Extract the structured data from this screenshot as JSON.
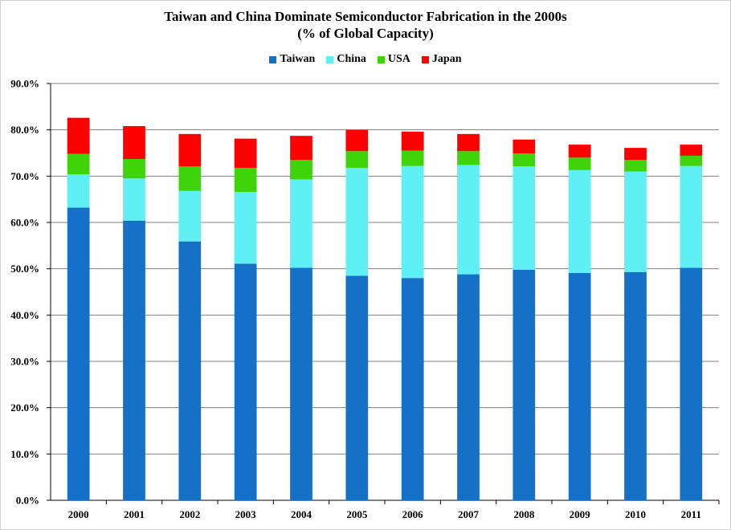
{
  "chart_data": {
    "type": "bar",
    "stacked": true,
    "title": "Taiwan and China Dominate Semiconductor Fabrication in the 2000s",
    "subtitle": "(% of Global Capacity)",
    "legend_position": "top",
    "categories": [
      "2000",
      "2001",
      "2002",
      "2003",
      "2004",
      "2005",
      "2006",
      "2007",
      "2008",
      "2009",
      "2010",
      "2011"
    ],
    "series": [
      {
        "name": "Taiwan",
        "color": "#1570c8",
        "values": [
          63.2,
          60.4,
          55.9,
          51.1,
          50.2,
          48.5,
          48.0,
          48.8,
          49.8,
          49.1,
          49.3,
          50.2
        ]
      },
      {
        "name": "China",
        "color": "#5ff0f5",
        "values": [
          7.2,
          9.1,
          10.9,
          15.5,
          19.1,
          23.3,
          24.2,
          23.6,
          22.3,
          22.2,
          21.7,
          22.0
        ]
      },
      {
        "name": "USA",
        "color": "#3fd30a",
        "values": [
          4.4,
          4.2,
          5.3,
          5.2,
          4.2,
          3.6,
          3.3,
          3.0,
          2.8,
          2.7,
          2.5,
          2.2
        ]
      },
      {
        "name": "Japan",
        "color": "#ff0000",
        "values": [
          7.8,
          7.1,
          7.0,
          6.3,
          5.2,
          4.6,
          4.1,
          3.7,
          3.0,
          2.8,
          2.6,
          2.4
        ]
      }
    ],
    "ylim": [
      0,
      90
    ],
    "yticks": [
      0,
      10,
      20,
      30,
      40,
      50,
      60,
      70,
      80,
      90
    ],
    "ytick_labels": [
      "0.0%",
      "10.0%",
      "20.0%",
      "30.0%",
      "40.0%",
      "50.0%",
      "60.0%",
      "70.0%",
      "80.0%",
      "90.0%"
    ],
    "grid": true,
    "xlabel": "",
    "ylabel": ""
  }
}
